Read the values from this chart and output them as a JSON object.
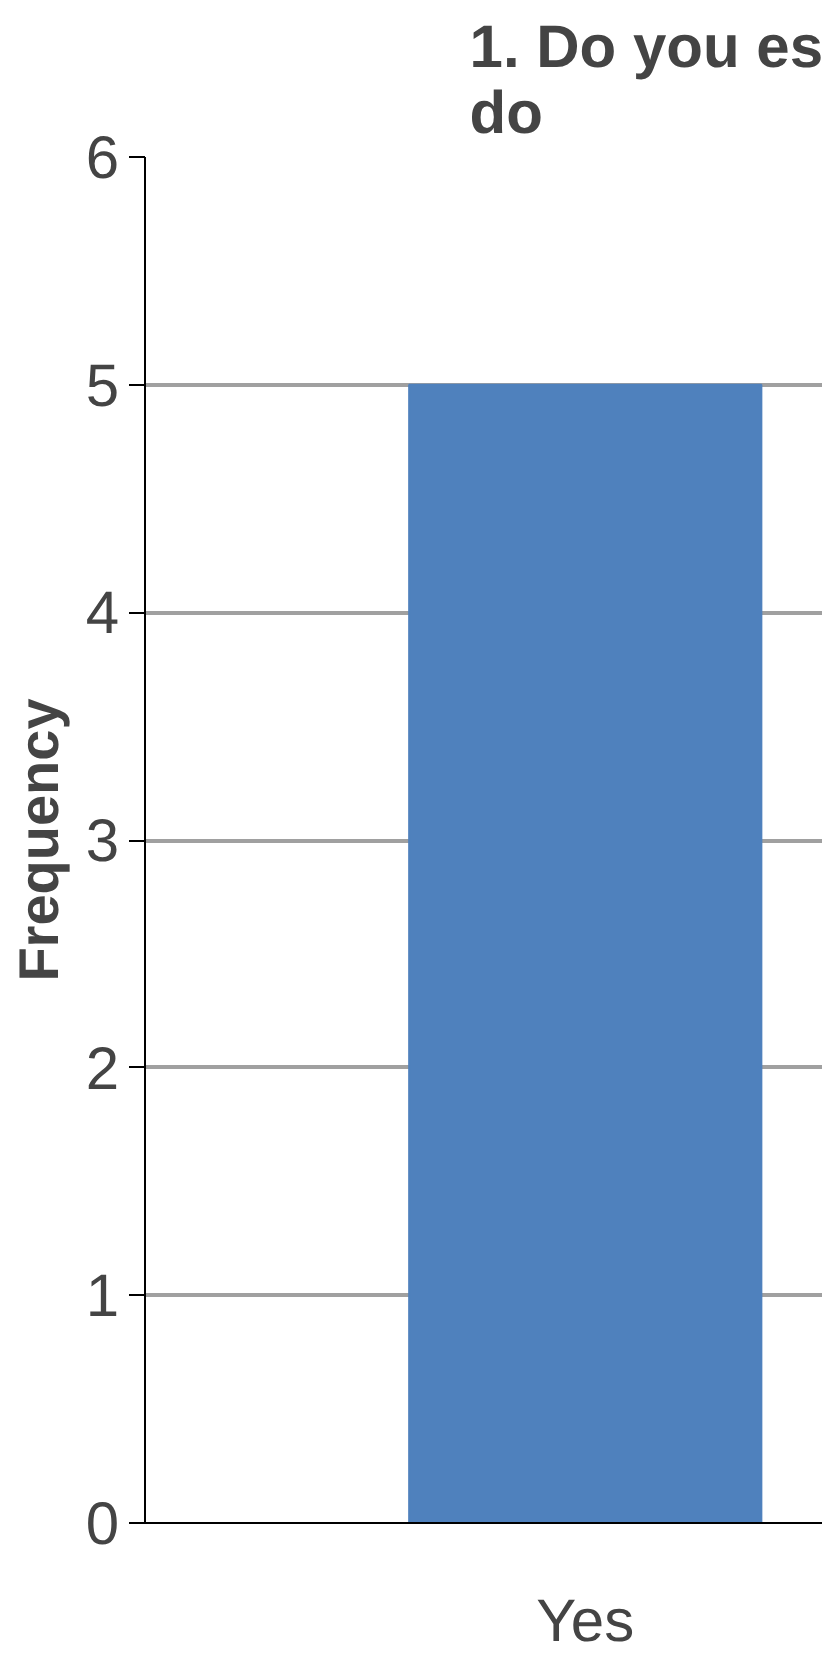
{
  "chart_data": {
    "type": "bar",
    "title": "1. Do you es\ndo",
    "ylabel": "Frequency",
    "categories": [
      "Yes"
    ],
    "values": [
      5
    ],
    "color": "#4f81bd",
    "ylim": [
      0,
      6
    ],
    "yticks": [
      0,
      1,
      2,
      3,
      4,
      5,
      6
    ],
    "grid": "y"
  }
}
